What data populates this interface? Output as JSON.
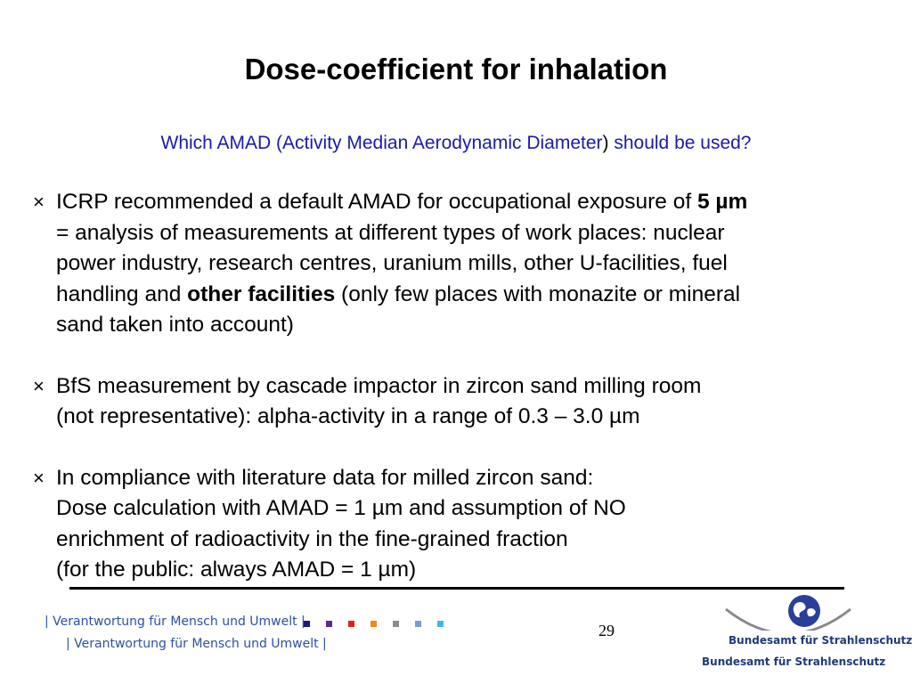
{
  "slide": {
    "title": "Dose-coefficient for inhalation",
    "subtitle": {
      "part1": "Which AMAD (Activity Median Aerodynamic Diameter",
      "paren": ")",
      "part2": " should be used?"
    },
    "bullet_marker": "×",
    "bullets": [
      {
        "lines": [
          {
            "pre": "ICRP recommended a default AMAD for occupational exposure of ",
            "bold": "5 µm",
            "post": ""
          },
          {
            "pre": "= analysis of measurements at different types of work places: nuclear",
            "bold": "",
            "post": ""
          },
          {
            "pre": "power industry, research centres, uranium mills, other U-facilities, fuel",
            "bold": "",
            "post": ""
          },
          {
            "pre": "handling and ",
            "bold": "other facilities",
            "post": " (only few places with monazite or mineral"
          },
          {
            "pre": "sand taken into account)",
            "bold": "",
            "post": ""
          }
        ]
      },
      {
        "lines": [
          {
            "pre": "BfS measurement by cascade impactor in zircon sand milling room",
            "bold": "",
            "post": ""
          },
          {
            "pre": "(not representative): alpha-activity in a range of 0.3 – 3.0 µm",
            "bold": "",
            "post": ""
          }
        ]
      },
      {
        "lines": [
          {
            "pre": "In compliance with literature data for milled zircon sand:",
            "bold": "",
            "post": ""
          },
          {
            "pre": "Dose calculation with AMAD = 1 µm and assumption of NO",
            "bold": "",
            "post": ""
          },
          {
            "pre": "enrichment of radioactivity in the fine-grained fraction",
            "bold": "",
            "post": ""
          },
          {
            "pre": "(for the public: always AMAD = 1 µm)",
            "bold": "",
            "post": ""
          }
        ]
      }
    ],
    "page_number": "29"
  },
  "footer": {
    "slogan_row1": "| Verantwortung für Mensch und Umwelt |",
    "slogan_row2": "| Verantwortung für Mensch und Umwelt |",
    "square_colors": [
      "#1a1a80",
      "#5a2d8c",
      "#e3201b",
      "#f08a1c",
      "#8c8c8c",
      "#7b9bd4",
      "#3fb7e8"
    ],
    "logo_name_1": "Bundesamt für Strahlenschutz",
    "logo_name_2": "Bundesamt für Strahlenschutz",
    "logo_colors": {
      "globe": "#2a3f9a",
      "arc": "#8a8a8a",
      "text": "#1f3a7a"
    }
  }
}
